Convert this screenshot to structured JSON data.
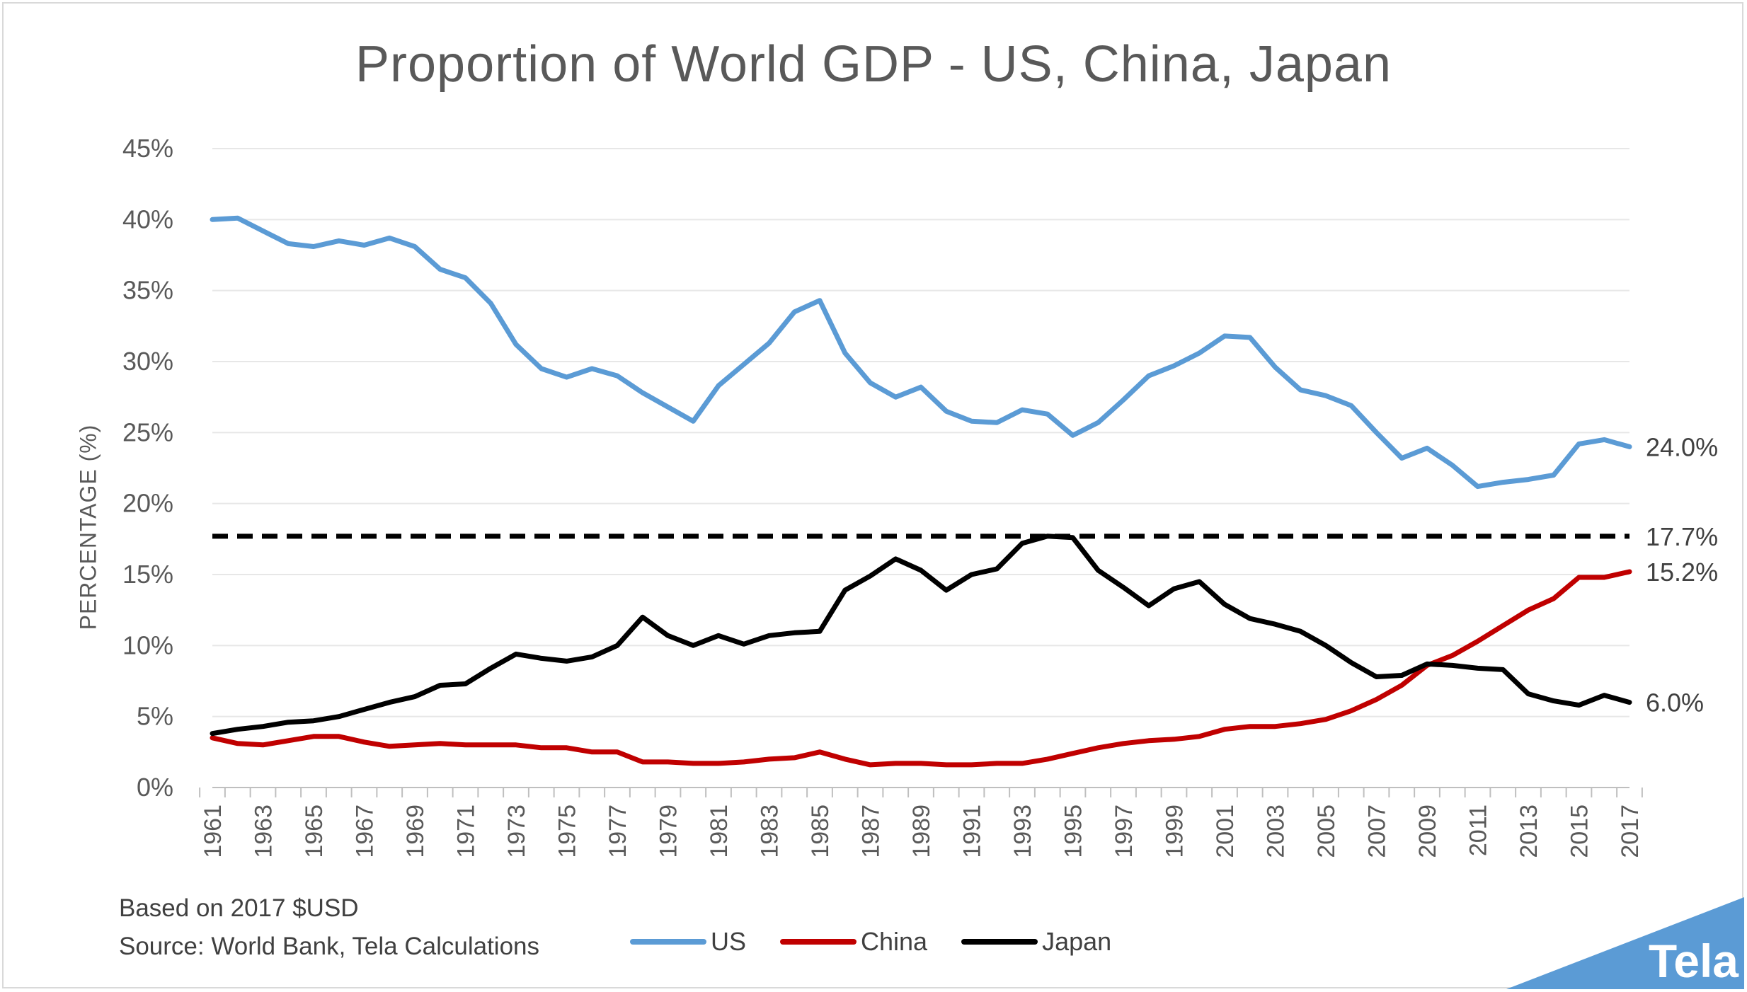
{
  "chart_data": {
    "type": "line",
    "title": "Proportion of World GDP - US, China, Japan",
    "ylabel": "PERCENTAGE (%)",
    "xlabel": "",
    "ylim": [
      0,
      45
    ],
    "y_ticks": [
      "0%",
      "5%",
      "10%",
      "15%",
      "20%",
      "25%",
      "30%",
      "35%",
      "40%",
      "45%"
    ],
    "x_tick_labels": [
      "1961",
      "1963",
      "1965",
      "1967",
      "1969",
      "1971",
      "1973",
      "1975",
      "1977",
      "1979",
      "1981",
      "1983",
      "1985",
      "1987",
      "1989",
      "1991",
      "1993",
      "1995",
      "1997",
      "1999",
      "2001",
      "2003",
      "2005",
      "2007",
      "2009",
      "2011",
      "2013",
      "2015",
      "2017"
    ],
    "grid": true,
    "legend_position": "bottom",
    "x": [
      1961,
      1962,
      1963,
      1964,
      1965,
      1966,
      1967,
      1968,
      1969,
      1970,
      1971,
      1972,
      1973,
      1974,
      1975,
      1976,
      1977,
      1978,
      1979,
      1980,
      1981,
      1982,
      1983,
      1984,
      1985,
      1986,
      1987,
      1988,
      1989,
      1990,
      1991,
      1992,
      1993,
      1994,
      1995,
      1996,
      1997,
      1998,
      1999,
      2000,
      2001,
      2002,
      2003,
      2004,
      2005,
      2006,
      2007,
      2008,
      2009,
      2010,
      2011,
      2012,
      2013,
      2014,
      2015,
      2016,
      2017
    ],
    "series": [
      {
        "name": "US",
        "color": "#5b9bd5",
        "values": [
          40.0,
          40.1,
          39.2,
          38.3,
          38.1,
          38.5,
          38.2,
          38.7,
          38.1,
          36.5,
          35.9,
          34.1,
          31.2,
          29.5,
          28.9,
          29.5,
          29.0,
          27.8,
          26.8,
          25.8,
          28.3,
          29.8,
          31.3,
          33.5,
          34.3,
          30.6,
          28.5,
          27.5,
          28.2,
          26.5,
          25.8,
          25.7,
          26.6,
          26.3,
          24.8,
          25.7,
          27.3,
          29.0,
          29.7,
          30.6,
          31.8,
          31.7,
          29.6,
          28.0,
          27.6,
          26.9,
          25.0,
          23.2,
          23.9,
          22.7,
          21.2,
          21.5,
          21.7,
          22.0,
          24.2,
          24.5,
          24.0
        ]
      },
      {
        "name": "China",
        "color": "#c00000",
        "values": [
          3.5,
          3.1,
          3.0,
          3.3,
          3.6,
          3.6,
          3.2,
          2.9,
          3.0,
          3.1,
          3.0,
          3.0,
          3.0,
          2.8,
          2.8,
          2.5,
          2.5,
          1.8,
          1.8,
          1.7,
          1.7,
          1.8,
          2.0,
          2.1,
          2.5,
          2.0,
          1.6,
          1.7,
          1.7,
          1.6,
          1.6,
          1.7,
          1.7,
          2.0,
          2.4,
          2.8,
          3.1,
          3.3,
          3.4,
          3.6,
          4.1,
          4.3,
          4.3,
          4.5,
          4.8,
          5.4,
          6.2,
          7.2,
          8.6,
          9.3,
          10.3,
          11.4,
          12.5,
          13.3,
          14.8,
          14.8,
          15.2
        ]
      },
      {
        "name": "Japan",
        "color": "#000000",
        "values": [
          3.8,
          4.1,
          4.3,
          4.6,
          4.7,
          5.0,
          5.5,
          6.0,
          6.4,
          7.2,
          7.3,
          8.4,
          9.4,
          9.1,
          8.9,
          9.2,
          10.0,
          12.0,
          10.7,
          10.0,
          10.7,
          10.1,
          10.7,
          10.9,
          11.0,
          13.9,
          14.9,
          16.1,
          15.3,
          13.9,
          15.0,
          15.4,
          17.2,
          17.7,
          17.6,
          15.3,
          14.1,
          12.8,
          14.0,
          14.5,
          12.9,
          11.9,
          11.5,
          11.0,
          10.0,
          8.8,
          7.8,
          7.9,
          8.7,
          8.6,
          8.4,
          8.3,
          6.6,
          6.1,
          5.8,
          6.5,
          6.0
        ]
      }
    ],
    "reference_line": {
      "value": 17.7,
      "style": "dashed",
      "color": "#000000"
    },
    "end_labels": [
      "24.0%",
      "17.7%",
      "15.2%",
      "6.0%"
    ]
  },
  "header": {
    "title": "Proportion of World GDP - US, China, Japan"
  },
  "footer": {
    "note": "Based on 2017 $USD",
    "source": "Source: World Bank, Tela Calculations"
  },
  "brand": {
    "name": "Tela",
    "color": "#5b9bd5"
  },
  "colors": {
    "axis": "#bfbfbf",
    "grid": "#e7e7e7",
    "text": "#595959"
  }
}
